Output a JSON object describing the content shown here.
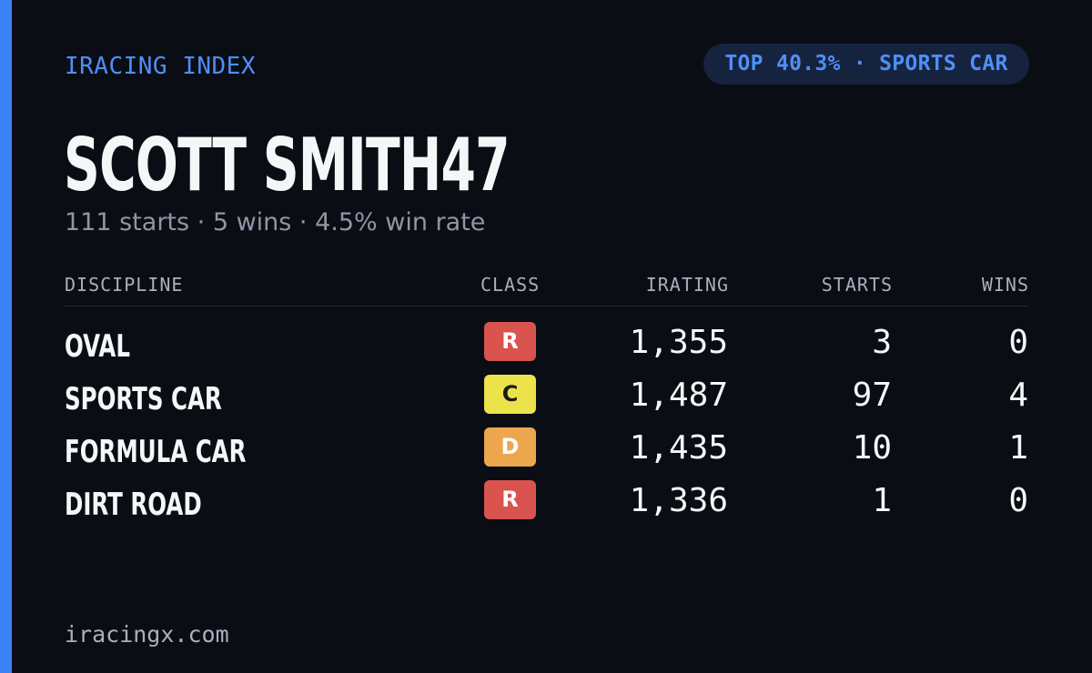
{
  "header": {
    "brand": "IRACING INDEX",
    "badge": "TOP 40.3% · SPORTS CAR"
  },
  "driver": {
    "name": "SCOTT SMITH47",
    "summary": "111 starts · 5 wins · 4.5% win rate"
  },
  "table": {
    "columns": {
      "discipline": "DISCIPLINE",
      "class": "CLASS",
      "irating": "IRATING",
      "starts": "STARTS",
      "wins": "WINS"
    },
    "rows": [
      {
        "discipline": "OVAL",
        "class": "R",
        "class_bg": "#d9534f",
        "class_fg": "#ffffff",
        "irating": "1,355",
        "starts": "3",
        "wins": "0"
      },
      {
        "discipline": "SPORTS CAR",
        "class": "C",
        "class_bg": "#ece24a",
        "class_fg": "#1a1a1a",
        "irating": "1,487",
        "starts": "97",
        "wins": "4"
      },
      {
        "discipline": "FORMULA CAR",
        "class": "D",
        "class_bg": "#eca64b",
        "class_fg": "#ffffff",
        "irating": "1,435",
        "starts": "10",
        "wins": "1"
      },
      {
        "discipline": "DIRT ROAD",
        "class": "R",
        "class_bg": "#d9534f",
        "class_fg": "#ffffff",
        "irating": "1,336",
        "starts": "1",
        "wins": "0"
      }
    ]
  },
  "footer": {
    "site": "iracingx.com"
  },
  "colors": {
    "background": "#0a0d14",
    "accent": "#3b82f6",
    "badge_bg": "#16233f",
    "text_primary": "#f5f6f8",
    "text_muted": "#8d97a6"
  }
}
